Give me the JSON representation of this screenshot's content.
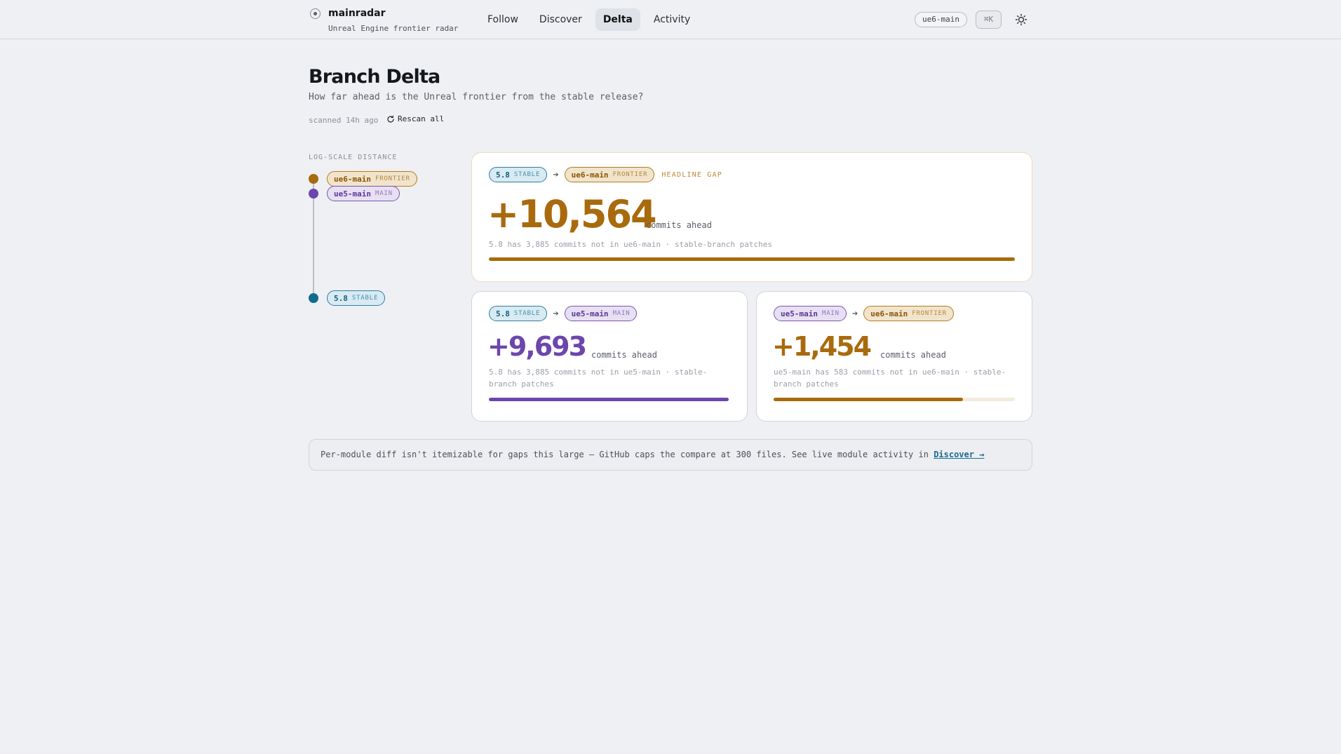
{
  "app": {
    "name": "mainradar",
    "subtitle": "Unreal Engine frontier radar"
  },
  "nav": {
    "items": [
      "Follow",
      "Discover",
      "Delta",
      "Activity"
    ],
    "active": "Delta"
  },
  "header_right": {
    "branch_pill": "ue6-main",
    "shortcut": "⌘K",
    "theme_icon": "sun-icon"
  },
  "page": {
    "title": "Branch Delta",
    "subtitle": "How far ahead is the Unreal frontier from the stable release?",
    "scanned": "scanned 14h ago",
    "rescan_label": "Rescan all"
  },
  "scale": {
    "label": "LOG-SCALE DISTANCE",
    "nodes": [
      {
        "name": "ue6-main",
        "kind": "FRONTIER",
        "color": "#a96a0d"
      },
      {
        "name": "ue5-main",
        "kind": "MAIN",
        "color": "#6d46ad"
      },
      {
        "name": "5.8",
        "kind": "STABLE",
        "color": "#126a91"
      }
    ]
  },
  "cards": {
    "headline": {
      "from": {
        "name": "5.8",
        "kind": "STABLE"
      },
      "to": {
        "name": "ue6-main",
        "kind": "FRONTIER"
      },
      "tag": "HEADLINE GAP",
      "value": "+10,564",
      "unit": "commits ahead",
      "detail": "5.8 has 3,885 commits not in ue6-main · stable-branch patches",
      "fill_fraction": 1.0,
      "color": "#a96a0d"
    },
    "stable_to_main": {
      "from": {
        "name": "5.8",
        "kind": "STABLE"
      },
      "to": {
        "name": "ue5-main",
        "kind": "MAIN"
      },
      "value": "+9,693",
      "unit": "commits ahead",
      "detail_line1": "5.8 has 3,885 commits not in ue5-main · stable-",
      "detail_line2": "branch patches",
      "fill_fraction": 1.0,
      "color": "#6d46ad"
    },
    "main_to_frontier": {
      "from": {
        "name": "ue5-main",
        "kind": "MAIN"
      },
      "to": {
        "name": "ue6-main",
        "kind": "FRONTIER"
      },
      "value": "+1,454",
      "unit": "commits ahead",
      "detail_line1": "ue5-main has 583 commits not in ue6-main · stable-",
      "detail_line2": "branch patches",
      "fill_fraction": 0.785,
      "color": "#a96a0d"
    }
  },
  "note": {
    "text": "Per-module diff isn't itemizable for gaps this large — GitHub caps the compare at 300 files. See live module activity in",
    "link": "Discover →"
  }
}
